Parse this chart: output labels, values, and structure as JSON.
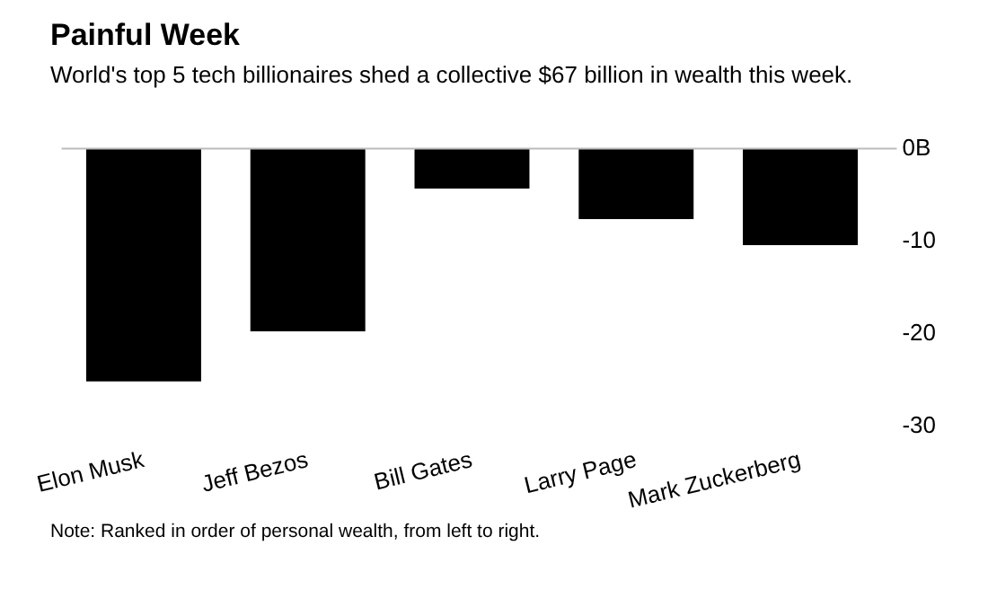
{
  "chart_data": {
    "type": "bar",
    "title": "Painful Week",
    "subtitle": "World's top 5 tech billionaires shed a collective $67 billion in wealth this week.",
    "categories": [
      "Elon Musk",
      "Jeff Bezos",
      "Bill Gates",
      "Larry Page",
      "Mark Zuckerberg"
    ],
    "values": [
      -25.1,
      -19.7,
      -4.3,
      -7.6,
      -10.4
    ],
    "color": "#000000",
    "ylim": [
      -30,
      0
    ],
    "yticks": [
      {
        "value": 0,
        "label": "0B"
      },
      -10,
      -20,
      -30
    ],
    "ref_lines": [
      {
        "axis": "y",
        "value": 0,
        "color": "#bbbbbb"
      }
    ],
    "grid": false,
    "legend": false,
    "annotations": [
      "Note: Ranked in order of personal wealth, from left to right."
    ]
  }
}
